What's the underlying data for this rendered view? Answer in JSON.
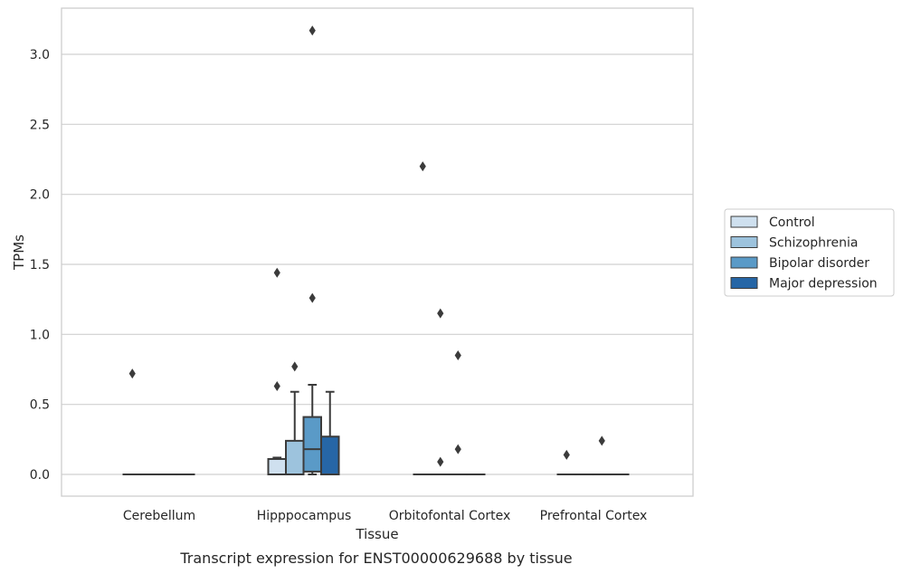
{
  "chart_data": {
    "type": "box",
    "title": "",
    "caption": "Transcript expression for ENST00000629688 by tissue",
    "xlabel": "Tissue",
    "ylabel": "TPMs",
    "ylim": [
      -0.15,
      3.3
    ],
    "yticks": [
      "0.0",
      "0.5",
      "1.0",
      "1.5",
      "2.0",
      "2.5",
      "3.0"
    ],
    "grid": "horizontal",
    "legend_position": "right",
    "categories": [
      "Cerebellum",
      "Hipppocampus",
      "Orbitofontal Cortex",
      "Prefrontal Cortex"
    ],
    "series": [
      {
        "name": "Control",
        "color": "#cfe0ef",
        "boxes": [
          {
            "min": 0,
            "q1": 0,
            "median": 0,
            "q3": 0,
            "max": 0,
            "outliers": [
              0.72
            ]
          },
          {
            "min": 0,
            "q1": 0,
            "median": 0,
            "q3": 0.11,
            "max": 0.12,
            "outliers": [
              0.63,
              1.44
            ]
          },
          {
            "min": 0,
            "q1": 0,
            "median": 0,
            "q3": 0,
            "max": 0,
            "outliers": [
              2.2
            ]
          },
          {
            "min": 0,
            "q1": 0,
            "median": 0,
            "q3": 0,
            "max": 0,
            "outliers": [
              0.14
            ]
          }
        ]
      },
      {
        "name": "Schizophrenia",
        "color": "#9dc3dd",
        "boxes": [
          {
            "min": 0,
            "q1": 0,
            "median": 0,
            "q3": 0,
            "max": 0,
            "outliers": []
          },
          {
            "min": 0,
            "q1": 0,
            "median": 0,
            "q3": 0.24,
            "max": 0.59,
            "outliers": [
              0.77
            ]
          },
          {
            "min": 0,
            "q1": 0,
            "median": 0,
            "q3": 0,
            "max": 0,
            "outliers": [
              0.09,
              1.15
            ]
          },
          {
            "min": 0,
            "q1": 0,
            "median": 0,
            "q3": 0,
            "max": 0,
            "outliers": []
          }
        ]
      },
      {
        "name": "Bipolar disorder",
        "color": "#5a9ac7",
        "boxes": [
          {
            "min": 0,
            "q1": 0,
            "median": 0,
            "q3": 0,
            "max": 0,
            "outliers": []
          },
          {
            "min": 0,
            "q1": 0.02,
            "median": 0.18,
            "q3": 0.41,
            "max": 0.64,
            "outliers": [
              1.26,
              3.17
            ]
          },
          {
            "min": 0,
            "q1": 0,
            "median": 0,
            "q3": 0,
            "max": 0,
            "outliers": [
              0.18,
              0.85
            ]
          },
          {
            "min": 0,
            "q1": 0,
            "median": 0,
            "q3": 0,
            "max": 0,
            "outliers": [
              0.24
            ]
          }
        ]
      },
      {
        "name": "Major depression",
        "color": "#2666a6",
        "boxes": [
          {
            "min": 0,
            "q1": 0,
            "median": 0,
            "q3": 0,
            "max": 0,
            "outliers": []
          },
          {
            "min": 0,
            "q1": 0,
            "median": 0,
            "q3": 0.27,
            "max": 0.59,
            "outliers": []
          },
          {
            "min": 0,
            "q1": 0,
            "median": 0,
            "q3": 0,
            "max": 0,
            "outliers": []
          },
          {
            "min": 0,
            "q1": 0,
            "median": 0,
            "q3": 0,
            "max": 0,
            "outliers": []
          }
        ]
      }
    ]
  }
}
